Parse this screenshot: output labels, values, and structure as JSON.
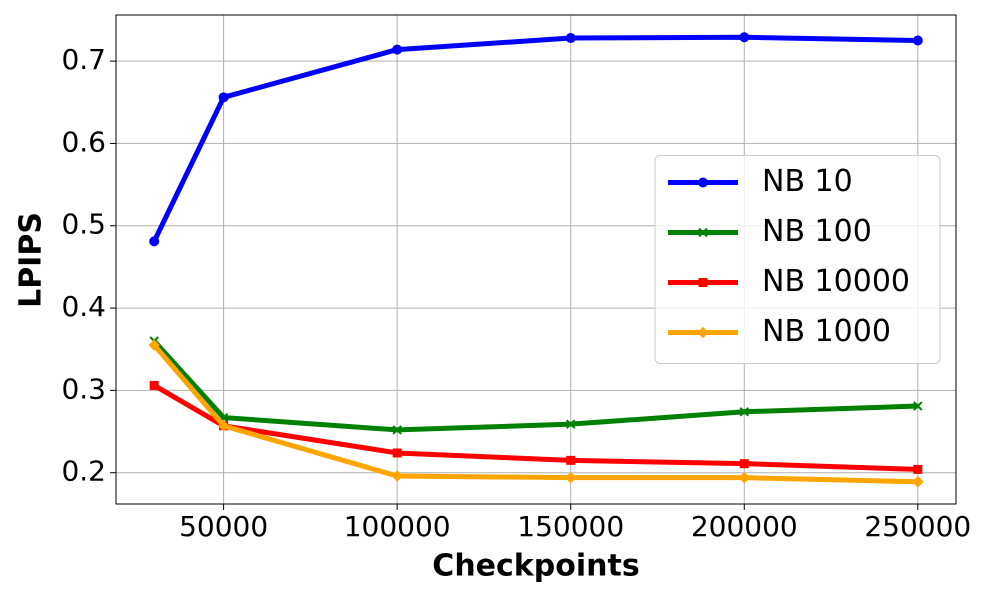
{
  "chart_data": {
    "type": "line",
    "x_label": "Checkpoints",
    "y_label": "LPIPS",
    "x": [
      30000,
      50000,
      100000,
      150000,
      200000,
      250000
    ],
    "series": [
      {
        "name": "NB 10",
        "color": "#0000ff",
        "marker": "o",
        "values": [
          0.481,
          0.656,
          0.714,
          0.728,
          0.729,
          0.725
        ]
      },
      {
        "name": "NB 100",
        "color": "#008000",
        "marker": "x",
        "values": [
          0.36,
          0.267,
          0.252,
          0.259,
          0.274,
          0.281
        ]
      },
      {
        "name": "NB 10000",
        "color": "#ff0000",
        "marker": "s",
        "values": [
          0.306,
          0.257,
          0.224,
          0.215,
          0.211,
          0.204
        ]
      },
      {
        "name": "NB 1000",
        "color": "#ffa500",
        "marker": "P",
        "values": [
          0.355,
          0.257,
          0.196,
          0.194,
          0.194,
          0.189
        ]
      }
    ],
    "xlim": [
      19000,
      261000
    ],
    "xticks": [
      50000,
      100000,
      150000,
      200000,
      250000
    ],
    "ylim": [
      0.162,
      0.756
    ],
    "yticks": [
      0.2,
      0.3,
      0.4,
      0.5,
      0.6,
      0.7
    ],
    "grid": true,
    "legend": "center right"
  }
}
